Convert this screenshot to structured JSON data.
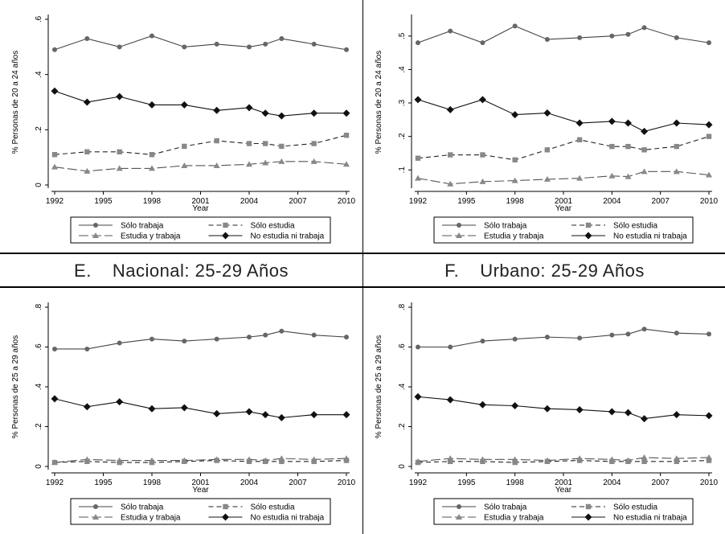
{
  "section_headings": [
    {
      "letter": "E.",
      "text": "Nacional: 25-29 Años"
    },
    {
      "letter": "F.",
      "text": "Urbano: 25-29 Años"
    }
  ],
  "colors": {
    "solid_series": "#444444",
    "dashed_series": "#111111",
    "grey_marker": "#888888",
    "grey_line": "#666666",
    "border": "#000000"
  },
  "chart_data": [
    {
      "type": "line",
      "xlabel": "Year",
      "ylabel": "% Personas de 20 a 24 años",
      "x_ticks": [
        1992,
        1995,
        1998,
        2001,
        2004,
        2007,
        2010
      ],
      "y_ticks": [
        0,
        0.2,
        0.4,
        0.6
      ],
      "y_tick_labels": [
        "0",
        ".2",
        ".4",
        ".6"
      ],
      "ylim": [
        0,
        0.6
      ],
      "xlim": [
        1992,
        2010
      ],
      "legend_position": "bottom",
      "x": [
        1992,
        1994,
        1996,
        1998,
        2000,
        2002,
        2004,
        2005,
        2006,
        2008,
        2010
      ],
      "series": [
        {
          "name": "Sólo trabaja",
          "style": "solid",
          "marker": "circle",
          "values": [
            0.49,
            0.53,
            0.5,
            0.54,
            0.5,
            0.51,
            0.5,
            0.51,
            0.53,
            0.51,
            0.49
          ]
        },
        {
          "name": "Sólo estudia",
          "style": "dashed",
          "marker": "square",
          "values": [
            0.11,
            0.12,
            0.12,
            0.11,
            0.14,
            0.16,
            0.15,
            0.15,
            0.14,
            0.15,
            0.18
          ]
        },
        {
          "name": "Estudia y trabaja",
          "style": "longdash",
          "marker": "triangle",
          "values": [
            0.065,
            0.05,
            0.06,
            0.06,
            0.07,
            0.07,
            0.075,
            0.08,
            0.085,
            0.085,
            0.075
          ]
        },
        {
          "name": "No estudia ni trabaja",
          "style": "solid",
          "marker": "diamond",
          "values": [
            0.34,
            0.3,
            0.32,
            0.29,
            0.29,
            0.27,
            0.28,
            0.26,
            0.25,
            0.26,
            0.26
          ]
        }
      ]
    },
    {
      "type": "line",
      "xlabel": "Year",
      "ylabel": "% Personas de 20 a 24 años",
      "x_ticks": [
        1992,
        1995,
        1998,
        2001,
        2004,
        2007,
        2010
      ],
      "y_ticks": [
        0.1,
        0.2,
        0.3,
        0.4,
        0.5
      ],
      "y_tick_labels": [
        ".1",
        ".2",
        ".3",
        ".4",
        ".5"
      ],
      "ylim": [
        0.055,
        0.55
      ],
      "xlim": [
        1992,
        2010
      ],
      "legend_position": "bottom",
      "x": [
        1992,
        1994,
        1996,
        1998,
        2000,
        2002,
        2004,
        2005,
        2006,
        2008,
        2010
      ],
      "series": [
        {
          "name": "Sólo trabaja",
          "style": "solid",
          "marker": "circle",
          "values": [
            0.48,
            0.515,
            0.48,
            0.53,
            0.49,
            0.495,
            0.5,
            0.505,
            0.525,
            0.495,
            0.48
          ]
        },
        {
          "name": "Sólo estudia",
          "style": "dashed",
          "marker": "square",
          "values": [
            0.135,
            0.145,
            0.145,
            0.13,
            0.16,
            0.19,
            0.17,
            0.17,
            0.16,
            0.17,
            0.2
          ]
        },
        {
          "name": "Estudia y trabaja",
          "style": "longdash",
          "marker": "triangle",
          "values": [
            0.075,
            0.058,
            0.065,
            0.068,
            0.072,
            0.075,
            0.082,
            0.08,
            0.095,
            0.095,
            0.085
          ]
        },
        {
          "name": "No estudia ni trabaja",
          "style": "solid",
          "marker": "diamond",
          "values": [
            0.31,
            0.28,
            0.31,
            0.265,
            0.27,
            0.24,
            0.245,
            0.24,
            0.215,
            0.24,
            0.235
          ]
        }
      ]
    },
    {
      "type": "line",
      "xlabel": "Year",
      "ylabel": "% Personas de 25 a 29 años",
      "x_ticks": [
        1992,
        1995,
        1998,
        2001,
        2004,
        2007,
        2010
      ],
      "y_ticks": [
        0,
        0.2,
        0.4,
        0.6,
        0.8
      ],
      "y_tick_labels": [
        "0",
        ".2",
        ".4",
        ".6",
        ".8"
      ],
      "ylim": [
        0,
        0.8
      ],
      "xlim": [
        1992,
        2010
      ],
      "legend_position": "bottom",
      "x": [
        1992,
        1994,
        1996,
        1998,
        2000,
        2002,
        2004,
        2005,
        2006,
        2008,
        2010
      ],
      "series": [
        {
          "name": "Sólo trabaja",
          "style": "solid",
          "marker": "circle",
          "values": [
            0.59,
            0.59,
            0.62,
            0.64,
            0.63,
            0.64,
            0.65,
            0.66,
            0.68,
            0.66,
            0.65
          ]
        },
        {
          "name": "Sólo estudia",
          "style": "dashed",
          "marker": "square",
          "values": [
            0.02,
            0.025,
            0.02,
            0.02,
            0.025,
            0.03,
            0.025,
            0.025,
            0.025,
            0.025,
            0.03
          ]
        },
        {
          "name": "Estudia y trabaja",
          "style": "longdash",
          "marker": "triangle",
          "values": [
            0.02,
            0.035,
            0.03,
            0.03,
            0.03,
            0.035,
            0.035,
            0.03,
            0.04,
            0.035,
            0.04
          ]
        },
        {
          "name": "No estudia ni trabaja",
          "style": "solid",
          "marker": "diamond",
          "values": [
            0.34,
            0.3,
            0.325,
            0.29,
            0.295,
            0.265,
            0.275,
            0.26,
            0.245,
            0.26,
            0.26
          ]
        }
      ]
    },
    {
      "type": "line",
      "xlabel": "Year",
      "ylabel": "% Personas de 25 a 29 años",
      "x_ticks": [
        1992,
        1995,
        1998,
        2001,
        2004,
        2007,
        2010
      ],
      "y_ticks": [
        0,
        0.2,
        0.4,
        0.6,
        0.8
      ],
      "y_tick_labels": [
        "0",
        ".2",
        ".4",
        ".6",
        ".8"
      ],
      "ylim": [
        0,
        0.8
      ],
      "xlim": [
        1992,
        2010
      ],
      "legend_position": "bottom",
      "x": [
        1992,
        1994,
        1996,
        1998,
        2000,
        2002,
        2004,
        2005,
        2006,
        2008,
        2010
      ],
      "series": [
        {
          "name": "Sólo trabaja",
          "style": "solid",
          "marker": "circle",
          "values": [
            0.6,
            0.6,
            0.63,
            0.64,
            0.65,
            0.645,
            0.66,
            0.665,
            0.69,
            0.67,
            0.665
          ]
        },
        {
          "name": "Sólo estudia",
          "style": "dashed",
          "marker": "square",
          "values": [
            0.02,
            0.025,
            0.025,
            0.02,
            0.025,
            0.03,
            0.025,
            0.025,
            0.025,
            0.025,
            0.03
          ]
        },
        {
          "name": "Estudia y trabaja",
          "style": "longdash",
          "marker": "triangle",
          "values": [
            0.025,
            0.04,
            0.035,
            0.035,
            0.03,
            0.04,
            0.035,
            0.03,
            0.045,
            0.04,
            0.045
          ]
        },
        {
          "name": "No estudia ni trabaja",
          "style": "solid",
          "marker": "diamond",
          "values": [
            0.35,
            0.335,
            0.31,
            0.305,
            0.29,
            0.285,
            0.275,
            0.27,
            0.24,
            0.26,
            0.255
          ]
        }
      ]
    }
  ]
}
